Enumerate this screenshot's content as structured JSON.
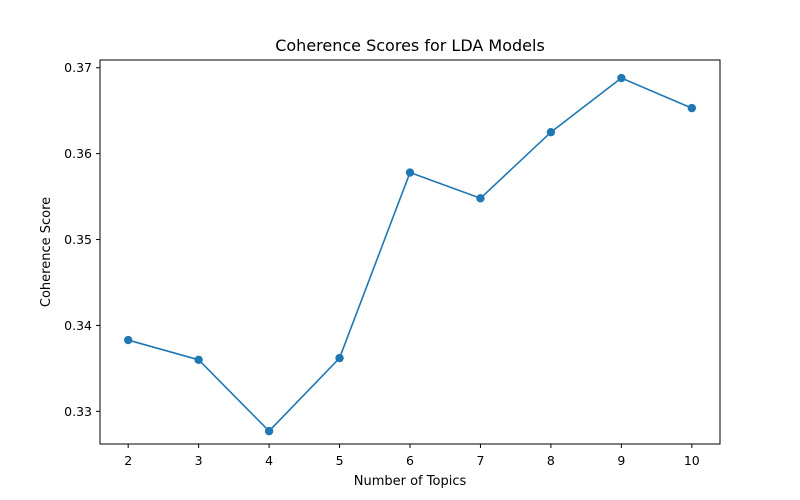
{
  "chart_data": {
    "type": "line",
    "title": "Coherence Scores for LDA Models",
    "xlabel": "Number of Topics",
    "ylabel": "Coherence Score",
    "x": [
      2,
      3,
      4,
      5,
      6,
      7,
      8,
      9,
      10
    ],
    "series": [
      {
        "values": [
          0.3383,
          0.336,
          0.3277,
          0.3362,
          0.3578,
          0.3548,
          0.3625,
          0.3688,
          0.3653
        ],
        "color": "#1f77b4",
        "marker": "circle"
      }
    ],
    "xlim": [
      1.6,
      10.4
    ],
    "ylim": [
      0.3262,
      0.3709
    ],
    "x_ticks": [
      "2",
      "3",
      "4",
      "5",
      "6",
      "7",
      "8",
      "9",
      "10"
    ],
    "y_ticks": [
      "0.33",
      "0.34",
      "0.35",
      "0.36",
      "0.37"
    ],
    "grid": false,
    "legend": false
  }
}
